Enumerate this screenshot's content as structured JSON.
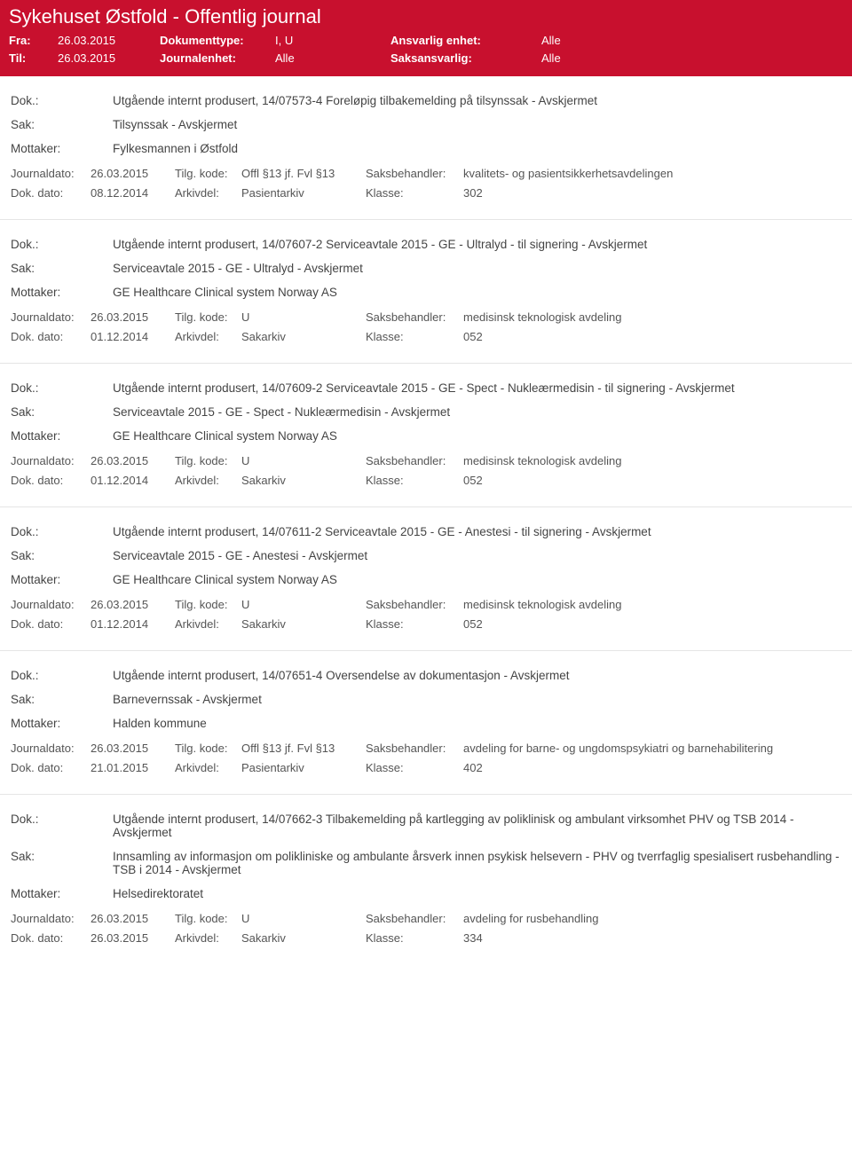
{
  "header": {
    "title": "Sykehuset Østfold - Offentlig journal",
    "fra_label": "Fra:",
    "fra_value": "26.03.2015",
    "til_label": "Til:",
    "til_value": "26.03.2015",
    "dokumenttype_label": "Dokumenttype:",
    "dokumenttype_value": "I, U",
    "journalenhet_label": "Journalenhet:",
    "journalenhet_value": "Alle",
    "ansvarlig_label": "Ansvarlig enhet:",
    "ansvarlig_value": "Alle",
    "saksansvarlig_label": "Saksansvarlig:",
    "saksansvarlig_value": "Alle"
  },
  "labels": {
    "dok": "Dok.:",
    "sak": "Sak:",
    "mottaker": "Mottaker:",
    "journaldato": "Journaldato:",
    "tilgkode": "Tilg. kode:",
    "saksbehandler": "Saksbehandler:",
    "dokdato": "Dok. dato:",
    "arkivdel": "Arkivdel:",
    "klasse": "Klasse:"
  },
  "entries": [
    {
      "dok": "Utgående internt produsert, 14/07573-4 Foreløpig tilbakemelding på tilsynssak - Avskjermet",
      "sak": "Tilsynssak - Avskjermet",
      "mottaker": "Fylkesmannen i Østfold",
      "journaldato": "26.03.2015",
      "tilgkode": "Offl §13 jf. Fvl §13",
      "saksbehandler": "kvalitets- og pasientsikkerhetsavdelingen",
      "dokdato": "08.12.2014",
      "arkivdel": "Pasientarkiv",
      "klasse": "302"
    },
    {
      "dok": "Utgående internt produsert, 14/07607-2 Serviceavtale 2015 - GE - Ultralyd - til signering - Avskjermet",
      "sak": "Serviceavtale 2015 - GE - Ultralyd - Avskjermet",
      "mottaker": "GE Healthcare Clinical system Norway AS",
      "journaldato": "26.03.2015",
      "tilgkode": "U",
      "saksbehandler": "medisinsk teknologisk avdeling",
      "dokdato": "01.12.2014",
      "arkivdel": "Sakarkiv",
      "klasse": "052"
    },
    {
      "dok": "Utgående internt produsert, 14/07609-2 Serviceavtale 2015 - GE - Spect -  Nukleærmedisin - til signering - Avskjermet",
      "sak": "Serviceavtale 2015 - GE - Spect - Nukleærmedisin - Avskjermet",
      "mottaker": "GE Healthcare Clinical system Norway AS",
      "journaldato": "26.03.2015",
      "tilgkode": "U",
      "saksbehandler": "medisinsk teknologisk avdeling",
      "dokdato": "01.12.2014",
      "arkivdel": "Sakarkiv",
      "klasse": "052"
    },
    {
      "dok": "Utgående internt produsert, 14/07611-2 Serviceavtale 2015 - GE - Anestesi - til signering - Avskjermet",
      "sak": "Serviceavtale 2015 - GE - Anestesi - Avskjermet",
      "mottaker": "GE Healthcare Clinical system Norway AS",
      "journaldato": "26.03.2015",
      "tilgkode": "U",
      "saksbehandler": "medisinsk teknologisk avdeling",
      "dokdato": "01.12.2014",
      "arkivdel": "Sakarkiv",
      "klasse": "052"
    },
    {
      "dok": "Utgående internt produsert, 14/07651-4 Oversendelse av dokumentasjon - Avskjermet",
      "sak": "Barnevernssak - Avskjermet",
      "mottaker": "Halden kommune",
      "journaldato": "26.03.2015",
      "tilgkode": "Offl §13 jf. Fvl §13",
      "saksbehandler": "avdeling for barne- og ungdomspsykiatri og barnehabilitering",
      "dokdato": "21.01.2015",
      "arkivdel": "Pasientarkiv",
      "klasse": "402"
    },
    {
      "dok": "Utgående internt produsert, 14/07662-3 Tilbakemelding på kartlegging av poliklinisk og ambulant virksomhet PHV og TSB 2014 - Avskjermet",
      "sak": "Innsamling av informasjon om polikliniske og ambulante årsverk innen psykisk helsevern - PHV og tverrfaglig spesialisert rusbehandling - TSB i 2014 - Avskjermet",
      "mottaker": "Helsedirektoratet",
      "journaldato": "26.03.2015",
      "tilgkode": "U",
      "saksbehandler": "avdeling for rusbehandling",
      "dokdato": "26.03.2015",
      "arkivdel": "Sakarkiv",
      "klasse": "334"
    }
  ]
}
